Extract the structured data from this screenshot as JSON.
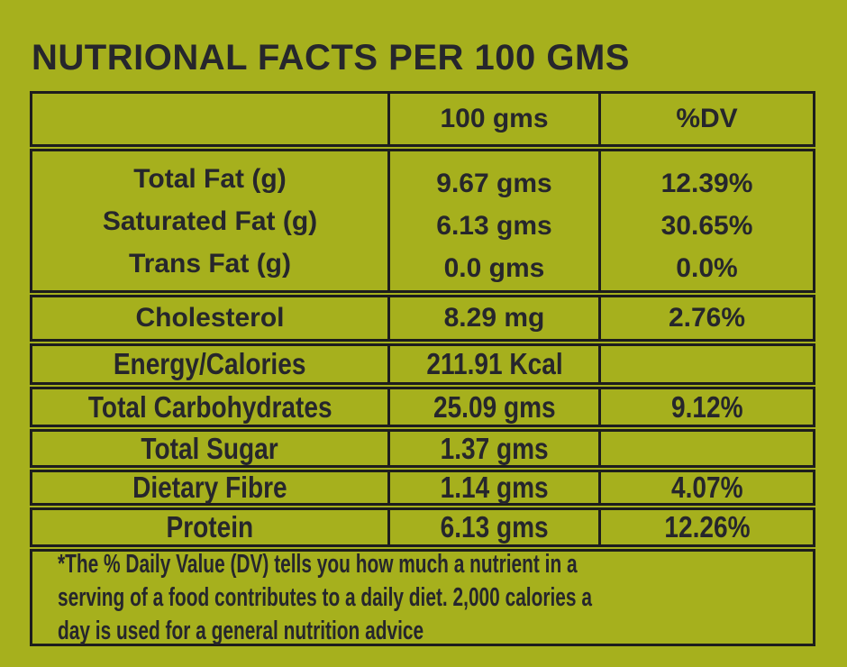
{
  "title": "NUTRIONAL FACTS PER 100 GMS",
  "colors": {
    "background": "#a6b01d",
    "text": "#26262c",
    "border": "#1d1d1d"
  },
  "table": {
    "header": {
      "blank": "",
      "amount": "100 gms",
      "dv": "%DV"
    },
    "fat_group": {
      "labels": [
        "Total Fat (g)",
        "Saturated Fat (g)",
        "Trans Fat (g)"
      ],
      "amounts": [
        "9.67 gms",
        "6.13 gms",
        "0.0 gms"
      ],
      "dvs": [
        "12.39%",
        "30.65%",
        "0.0%"
      ]
    },
    "rows": [
      {
        "name": "Cholesterol",
        "amount": "8.29 mg",
        "dv": "2.76%"
      },
      {
        "name": "Energy/Calories",
        "amount": "211.91 Kcal",
        "dv": ""
      },
      {
        "name": "Total Carbohydrates",
        "amount": "25.09 gms",
        "dv": "9.12%"
      },
      {
        "name": "Total Sugar",
        "amount": "1.37 gms",
        "dv": ""
      },
      {
        "name": "Dietary Fibre",
        "amount": "1.14 gms",
        "dv": "4.07%"
      },
      {
        "name": "Protein",
        "amount": "6.13 gms",
        "dv": "12.26%"
      }
    ],
    "footnote": {
      "lines": [
        "*The % Daily Value (DV) tells you how much a nutrient in a",
        "serving of a food contributes to a daily diet. 2,000 calories a",
        "day is used for a general nutrition advice"
      ]
    }
  }
}
